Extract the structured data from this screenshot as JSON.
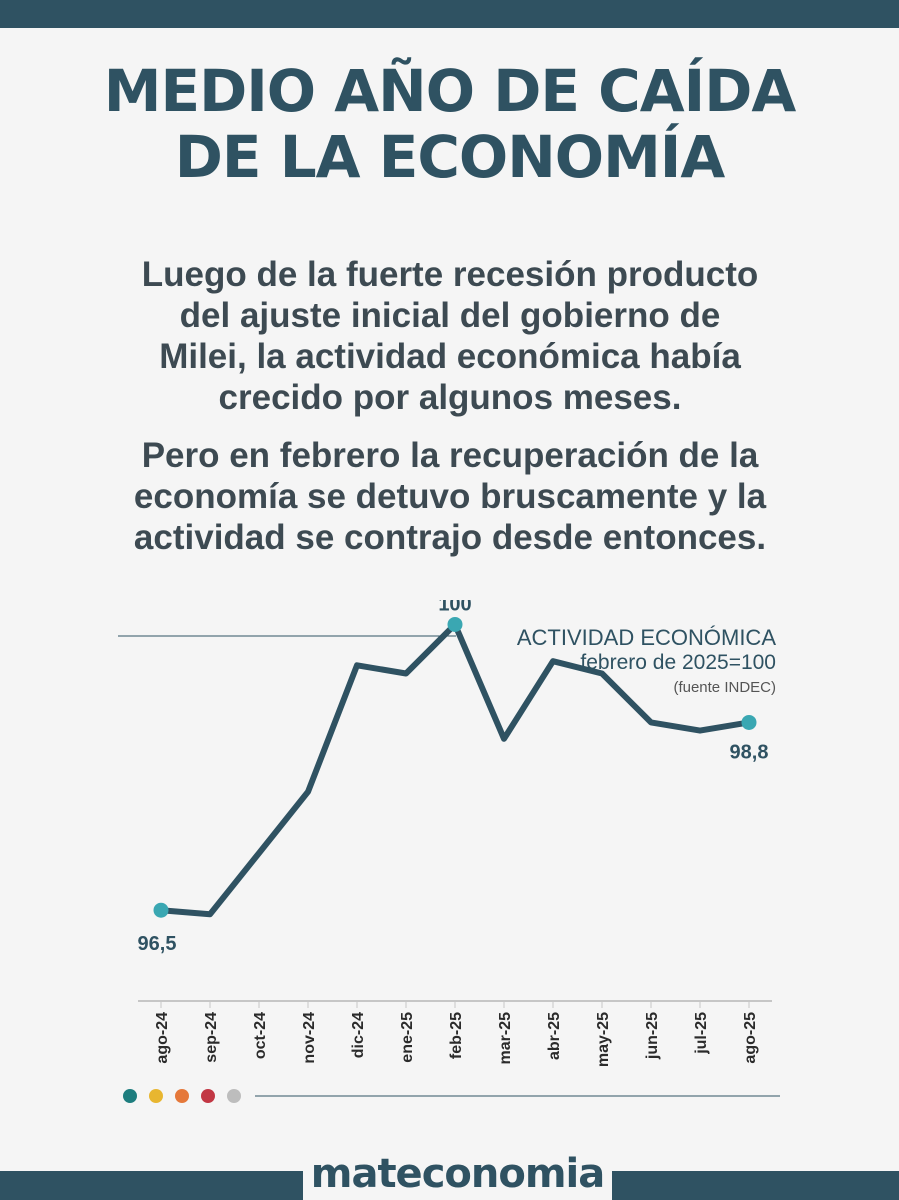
{
  "headline": {
    "line1": "MEDIO AÑO DE CAÍDA",
    "line2": "DE LA ECONOMÍA"
  },
  "paragraphs": [
    [
      "Luego de la fuerte recesión producto",
      "del ajuste inicial del gobierno de",
      "Milei, la actividad económica había",
      "crecido por algunos meses."
    ],
    [
      "Pero en febrero la recuperación de la",
      "economía se detuvo bruscamente y la",
      "actividad se contrajo desde entonces."
    ]
  ],
  "chart_data": {
    "type": "line",
    "title": "ACTIVIDAD ECONÓMICA",
    "subtitle": "febrero de 2025=100",
    "source": "(fuente INDEC)",
    "categories": [
      "ago-24",
      "sep-24",
      "oct-24",
      "nov-24",
      "dic-24",
      "ene-25",
      "feb-25",
      "mar-25",
      "abr-25",
      "may-25",
      "jun-25",
      "jul-25",
      "ago-25"
    ],
    "series": [
      {
        "name": "Actividad económica",
        "values": [
          96.5,
          96.45,
          97.2,
          97.95,
          99.5,
          99.4,
          100.0,
          98.6,
          99.55,
          99.4,
          98.8,
          98.7,
          98.8
        ]
      }
    ],
    "ylim": [
      95.4,
      100.3
    ],
    "highlighted": [
      {
        "index": 0,
        "label": "96,5"
      },
      {
        "index": 6,
        "label": "100"
      },
      {
        "index": 12,
        "label": "98,8"
      }
    ],
    "line_color": "#2f5262",
    "marker_color": "#3aa7b2"
  },
  "legend_dots": [
    "#1d7d7e",
    "#e8b630",
    "#e5783a",
    "#c23744",
    "#bdbdbd"
  ],
  "footer": {
    "brand": "mateconomia"
  }
}
